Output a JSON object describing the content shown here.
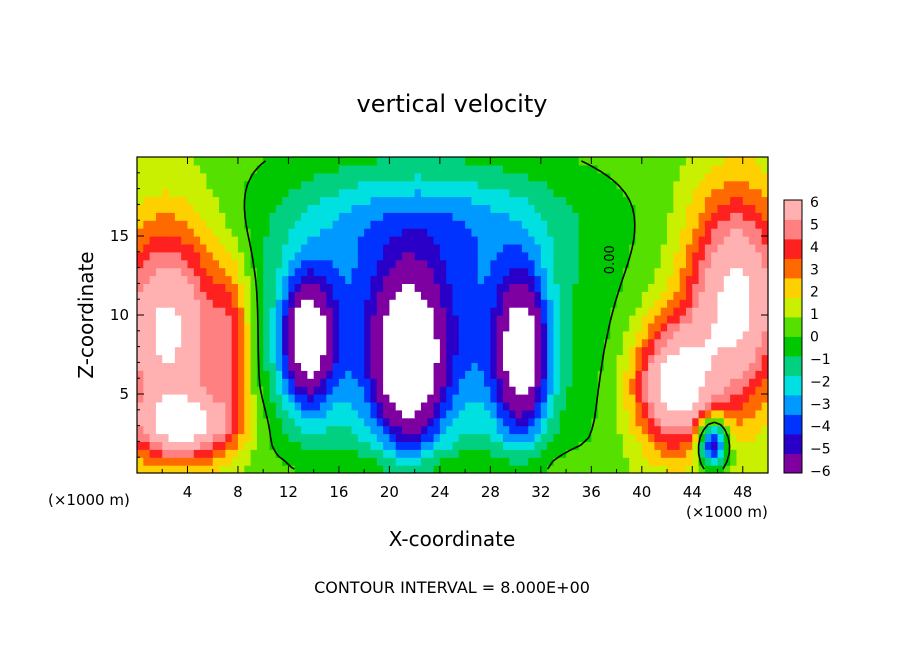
{
  "chart_data": {
    "type": "heatmap",
    "title": "vertical velocity",
    "xlabel": "X-coordinate",
    "ylabel": "Z-coordinate",
    "x_unit": "(×1000 m)",
    "footer": "CONTOUR INTERVAL = 8.000E+00",
    "xlim": [
      0,
      50
    ],
    "ylim": [
      0,
      20
    ],
    "x_ticks": [
      4,
      8,
      12,
      16,
      20,
      24,
      28,
      32,
      36,
      40,
      44,
      48
    ],
    "y_ticks": [
      5,
      10,
      15
    ],
    "colorbar": {
      "min": -6,
      "max": 6,
      "ticks": [
        6,
        5,
        4,
        3,
        2,
        1,
        0,
        -1,
        -2,
        -3,
        -4,
        -5,
        -6
      ],
      "colors": [
        "#7f00a0",
        "#2a00c8",
        "#0033ff",
        "#0099ff",
        "#00e0e0",
        "#00d080",
        "#00c800",
        "#55e000",
        "#c8f000",
        "#ffd000",
        "#ff6a00",
        "#ff2020",
        "#ff8080",
        "#ffb0b0"
      ]
    },
    "contour_label": "0.00",
    "background_level": 0.4,
    "features": [
      {
        "name": "left updraft",
        "x": 2.5,
        "z": 9,
        "rx": 4.5,
        "rz": 7,
        "value": 7,
        "saturated": true
      },
      {
        "name": "left updraft base",
        "x": 4,
        "z": 3,
        "rx": 4,
        "rz": 2,
        "value": 5
      },
      {
        "name": "left tilted band",
        "x": 7.5,
        "z": 8,
        "rx": 1.5,
        "rz": 5,
        "value": 3
      },
      {
        "name": "right updraft",
        "x": 47.5,
        "z": 11,
        "rx": 4,
        "rz": 7,
        "value": 7,
        "saturated": true
      },
      {
        "name": "right lower updraft",
        "x": 42.5,
        "z": 5.5,
        "rx": 3.2,
        "rz": 4,
        "value": 7,
        "saturated": true
      },
      {
        "name": "right downdraft spot",
        "x": 45.6,
        "z": 2,
        "rx": 1.2,
        "rz": 1.6,
        "value": -7
      },
      {
        "name": "central downdraft",
        "x": 22,
        "z": 9,
        "rx": 11,
        "rz": 8,
        "value": -4.5
      },
      {
        "name": "downdraft core A",
        "x": 13.5,
        "z": 8.5,
        "rx": 2,
        "rz": 4,
        "value": -7,
        "saturated": true
      },
      {
        "name": "downdraft core B",
        "x": 21.5,
        "z": 7,
        "rx": 2.5,
        "rz": 5,
        "value": -7,
        "saturated": true
      },
      {
        "name": "downdraft core C",
        "x": 30.5,
        "z": 7.5,
        "rx": 2,
        "rz": 5,
        "value": -7,
        "saturated": true
      },
      {
        "name": "upper cyan layer",
        "x": 23,
        "z": 16,
        "rx": 12,
        "rz": 3.5,
        "value": -2
      },
      {
        "name": "surface green bumps",
        "x": 24,
        "z": 0.5,
        "rx": 12,
        "rz": 1,
        "value": 0.8
      }
    ]
  }
}
